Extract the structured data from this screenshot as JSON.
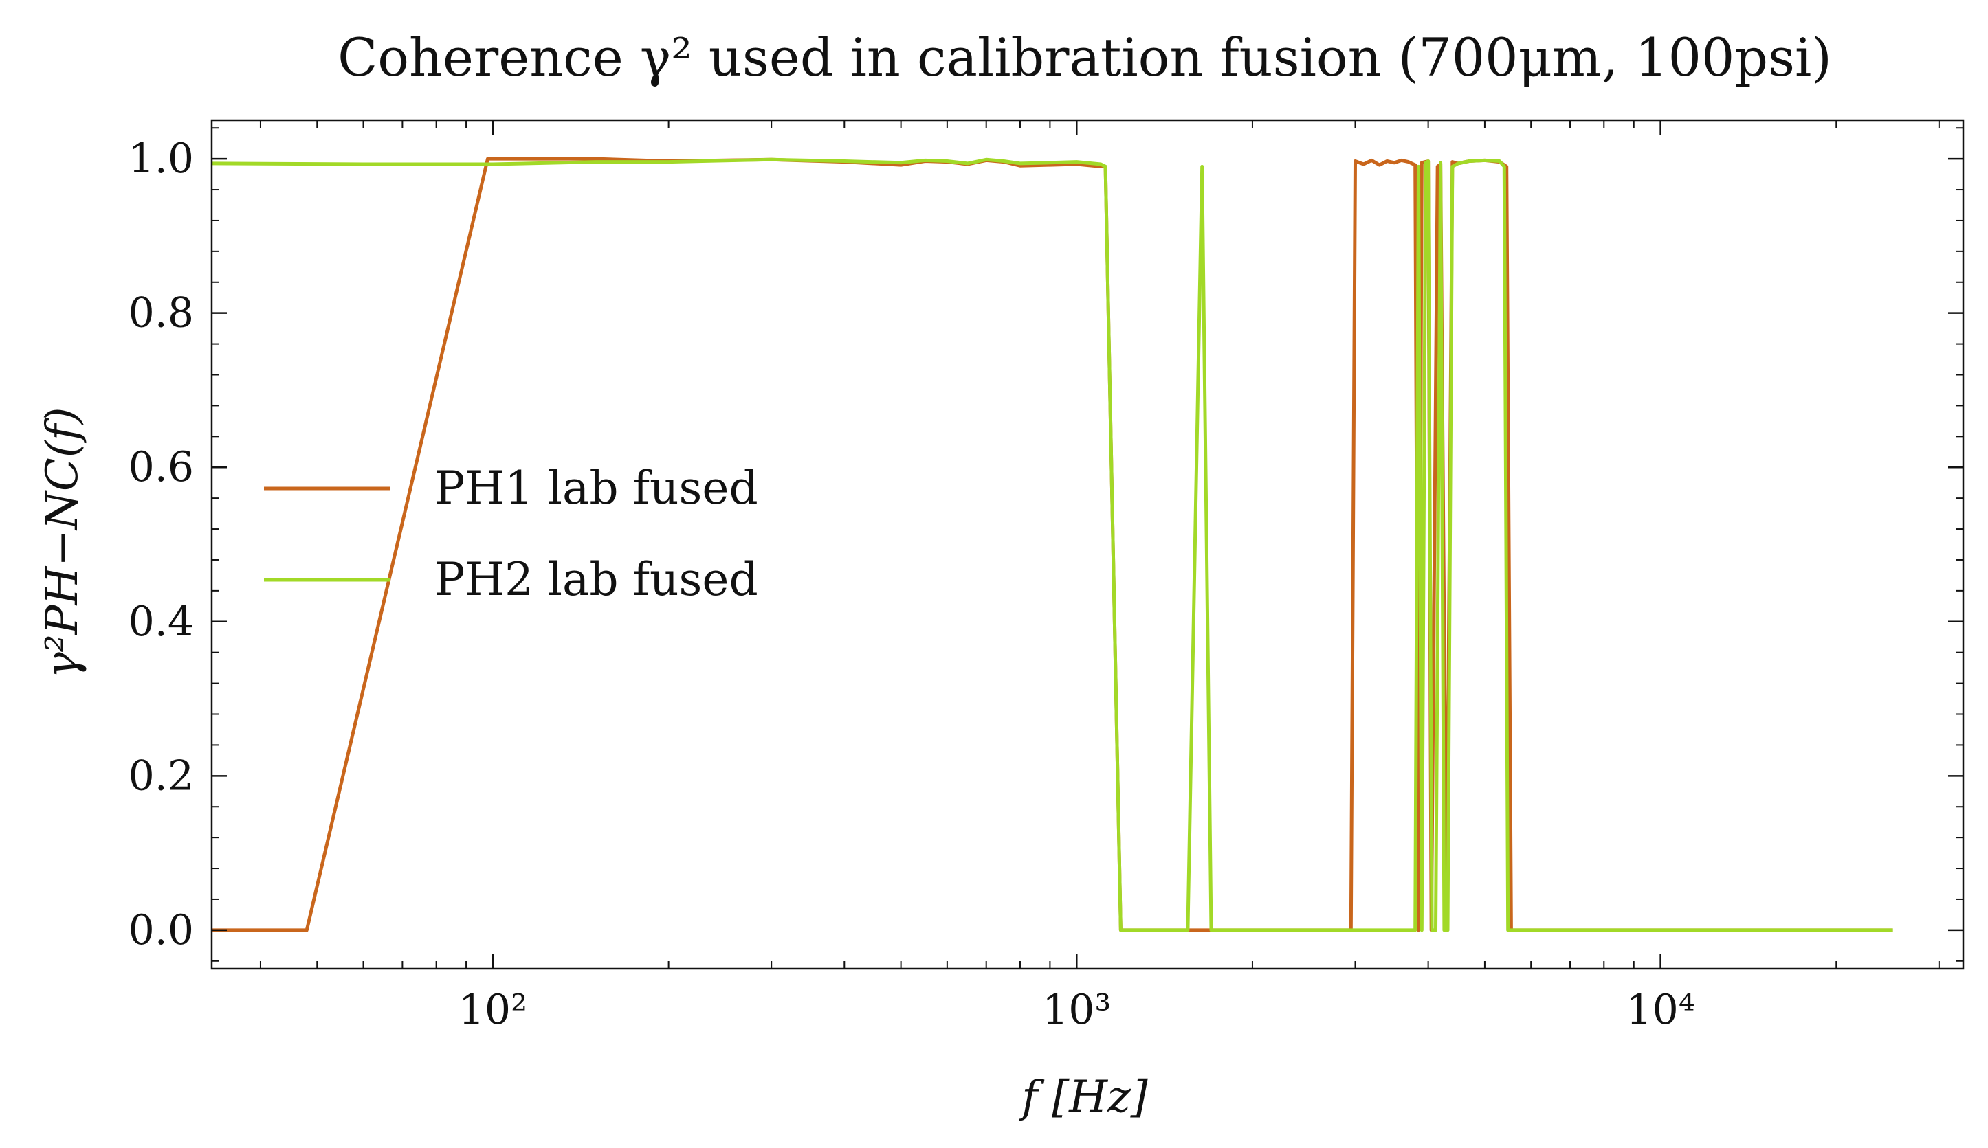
{
  "chart_data": {
    "type": "line",
    "title": "Coherence γ² used in calibration fusion (700μm, 100psi)",
    "xlabel": "f [Hz]",
    "ylabel": "γ²PH−NC(f)",
    "xscale": "log",
    "xlim": [
      33,
      33000
    ],
    "ylim": [
      -0.05,
      1.05
    ],
    "grid": false,
    "legend_position": "center-left",
    "x_ticks": [
      {
        "value": 100,
        "label": "10²"
      },
      {
        "value": 1000,
        "label": "10³"
      },
      {
        "value": 10000,
        "label": "10⁴"
      }
    ],
    "y_ticks": [
      {
        "value": 0.0,
        "label": "0.0"
      },
      {
        "value": 0.2,
        "label": "0.2"
      },
      {
        "value": 0.4,
        "label": "0.4"
      },
      {
        "value": 0.6,
        "label": "0.6"
      },
      {
        "value": 0.8,
        "label": "0.8"
      },
      {
        "value": 1.0,
        "label": "1.0"
      }
    ],
    "series": [
      {
        "name": "PH1 lab fused",
        "color": "#c9661c",
        "points": [
          [
            33,
            0
          ],
          [
            48,
            0
          ],
          [
            98,
            1.0
          ],
          [
            150,
            1.0
          ],
          [
            200,
            0.997
          ],
          [
            300,
            0.999
          ],
          [
            400,
            0.996
          ],
          [
            500,
            0.992
          ],
          [
            550,
            0.997
          ],
          [
            600,
            0.996
          ],
          [
            650,
            0.993
          ],
          [
            700,
            0.998
          ],
          [
            750,
            0.996
          ],
          [
            800,
            0.991
          ],
          [
            900,
            0.992
          ],
          [
            1000,
            0.993
          ],
          [
            1100,
            0.99
          ],
          [
            1120,
            0.99
          ],
          [
            1190,
            0
          ],
          [
            1600,
            0
          ],
          [
            1650,
            0
          ],
          [
            2950,
            0
          ],
          [
            3000,
            0.997
          ],
          [
            3100,
            0.993
          ],
          [
            3200,
            0.998
          ],
          [
            3300,
            0.992
          ],
          [
            3400,
            0.997
          ],
          [
            3500,
            0.995
          ],
          [
            3600,
            0.998
          ],
          [
            3700,
            0.996
          ],
          [
            3800,
            0.992
          ],
          [
            3850,
            0
          ],
          [
            3900,
            0.995
          ],
          [
            4000,
            0.997
          ],
          [
            4050,
            0
          ],
          [
            4150,
            0.99
          ],
          [
            4200,
            0.993
          ],
          [
            4300,
            0
          ],
          [
            4400,
            0.996
          ],
          [
            4500,
            0.994
          ],
          [
            4700,
            0.997
          ],
          [
            5000,
            0.998
          ],
          [
            5300,
            0.996
          ],
          [
            5450,
            0.99
          ],
          [
            5550,
            0
          ],
          [
            25000,
            0
          ]
        ]
      },
      {
        "name": "PH2 lab fused",
        "color": "#a2d927",
        "points": [
          [
            33,
            0.994
          ],
          [
            60,
            0.993
          ],
          [
            100,
            0.993
          ],
          [
            150,
            0.996
          ],
          [
            200,
            0.996
          ],
          [
            300,
            0.999
          ],
          [
            400,
            0.997
          ],
          [
            500,
            0.995
          ],
          [
            550,
            0.998
          ],
          [
            600,
            0.997
          ],
          [
            650,
            0.994
          ],
          [
            700,
            0.999
          ],
          [
            750,
            0.997
          ],
          [
            800,
            0.994
          ],
          [
            900,
            0.995
          ],
          [
            1000,
            0.996
          ],
          [
            1100,
            0.993
          ],
          [
            1120,
            0.99
          ],
          [
            1190,
            0
          ],
          [
            1550,
            0
          ],
          [
            1640,
            0.99
          ],
          [
            1700,
            0
          ],
          [
            3800,
            0
          ],
          [
            3850,
            0.99
          ],
          [
            3900,
            0
          ],
          [
            3960,
            0.995
          ],
          [
            4000,
            0.997
          ],
          [
            4060,
            0
          ],
          [
            4120,
            0
          ],
          [
            4200,
            0.995
          ],
          [
            4260,
            0
          ],
          [
            4320,
            0
          ],
          [
            4400,
            0.99
          ],
          [
            4500,
            0.994
          ],
          [
            4700,
            0.997
          ],
          [
            5000,
            0.998
          ],
          [
            5300,
            0.997
          ],
          [
            5400,
            0.99
          ],
          [
            5480,
            0
          ],
          [
            25000,
            0
          ]
        ]
      }
    ]
  }
}
